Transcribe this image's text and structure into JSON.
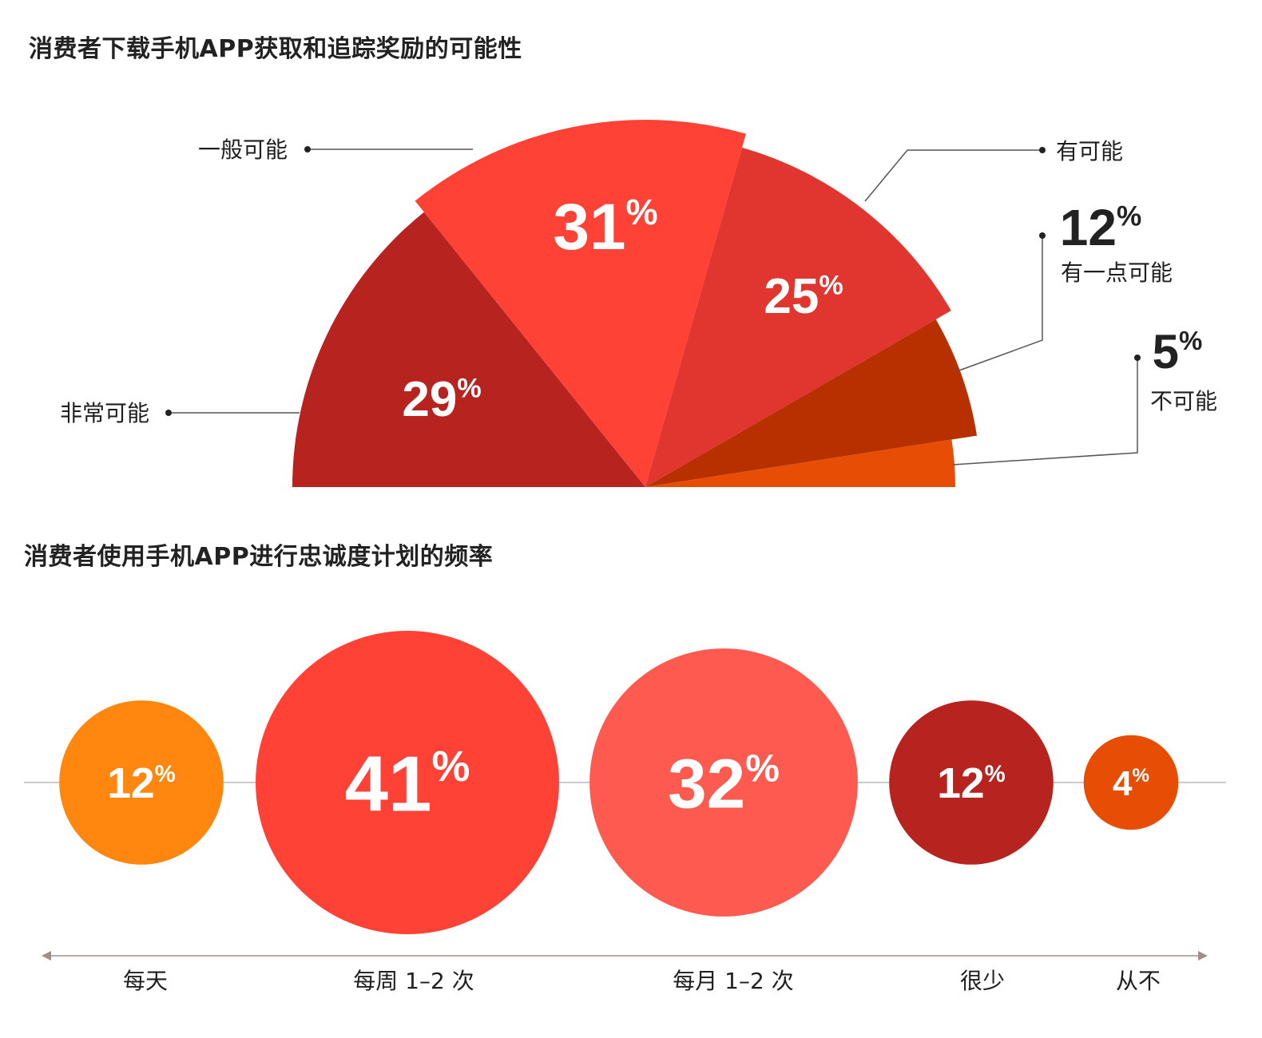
{
  "chart_data": [
    {
      "type": "pie",
      "title": "消费者下载手机APP获取和追踪奖励的可能性",
      "slices": [
        {
          "label": "非常可能",
          "value": 29,
          "color": "#B7231F"
        },
        {
          "label": "一般可能",
          "value": 31,
          "color": "#FF4136"
        },
        {
          "label": "有可能",
          "value": 25,
          "color": "#E1362F"
        },
        {
          "label": "有一点可能",
          "value": 12,
          "color": "#B83000"
        },
        {
          "label": "不可能",
          "value": 5,
          "color": "#E84D05"
        }
      ],
      "value_suffix": "%"
    },
    {
      "type": "scatter",
      "title": "消费者使用手机APP进行忠诚度计划的频率",
      "categories": [
        "每天",
        "每周 1–2 次",
        "每月 1–2 次",
        "很少",
        "从不"
      ],
      "values": [
        12,
        41,
        32,
        12,
        4
      ],
      "colors": [
        "#FF870F",
        "#FF4136",
        "#FF5A50",
        "#B7231F",
        "#E84D05"
      ],
      "value_suffix": "%"
    }
  ]
}
